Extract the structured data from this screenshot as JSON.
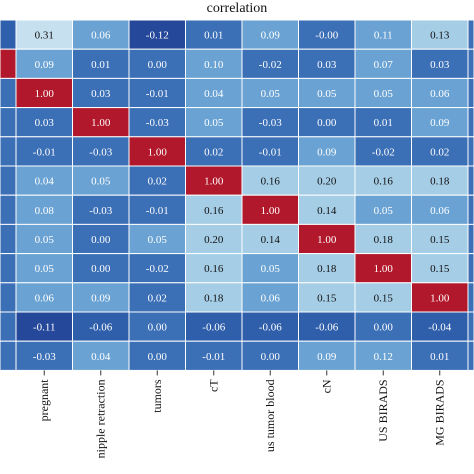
{
  "chart_data": {
    "type": "heatmap",
    "title": "correlation",
    "x_labels": [
      "pregnant",
      "nipple retraction",
      "tumors",
      "cT",
      "us tumor blood",
      "cN",
      "US BIRADS",
      "MG BIRADS"
    ],
    "y_labels": [],
    "row_count": 12,
    "values": [
      [
        0.31,
        0.06,
        -0.12,
        0.01,
        0.09,
        -0.0,
        0.11,
        0.13
      ],
      [
        0.09,
        0.01,
        0.0,
        0.1,
        -0.02,
        0.03,
        0.07,
        0.03
      ],
      [
        1.0,
        0.03,
        -0.01,
        0.04,
        0.05,
        0.05,
        0.05,
        0.06
      ],
      [
        0.03,
        1.0,
        -0.03,
        0.05,
        -0.03,
        0.0,
        0.01,
        0.09
      ],
      [
        -0.01,
        -0.03,
        1.0,
        0.02,
        -0.01,
        0.09,
        -0.02,
        0.02
      ],
      [
        0.04,
        0.05,
        0.02,
        1.0,
        0.16,
        0.2,
        0.16,
        0.18
      ],
      [
        0.08,
        -0.03,
        -0.01,
        0.16,
        1.0,
        0.14,
        0.05,
        0.06
      ],
      [
        0.05,
        0.0,
        0.05,
        0.2,
        0.14,
        1.0,
        0.18,
        0.15
      ],
      [
        0.05,
        0.0,
        -0.02,
        0.16,
        0.05,
        0.18,
        1.0,
        0.15
      ],
      [
        0.06,
        0.09,
        0.02,
        0.18,
        0.06,
        0.15,
        0.15,
        1.0
      ],
      [
        -0.11,
        -0.06,
        0.0,
        -0.06,
        -0.06,
        -0.06,
        0.0,
        -0.04
      ],
      [
        -0.03,
        0.04,
        0.0,
        -0.01,
        0.0,
        0.09,
        0.12,
        0.01
      ]
    ],
    "left_partial_column_colors": [
      "#2f60ae",
      "#b2182b",
      "#3b6fb6",
      "#3b6fb6",
      "#3b6fb6",
      "#3b6fb6",
      "#3b6fb6",
      "#3b6fb6",
      "#3b6fb6",
      "#3b6fb6",
      "#3b6fb6",
      "#3b6fb6"
    ],
    "colormap": {
      "low": "#26489a",
      "mid_low": "#3b6fb6",
      "mid": "#6aa3d3",
      "high_light": "#a6cde6",
      "max": "#b2182b"
    },
    "grid": true
  }
}
